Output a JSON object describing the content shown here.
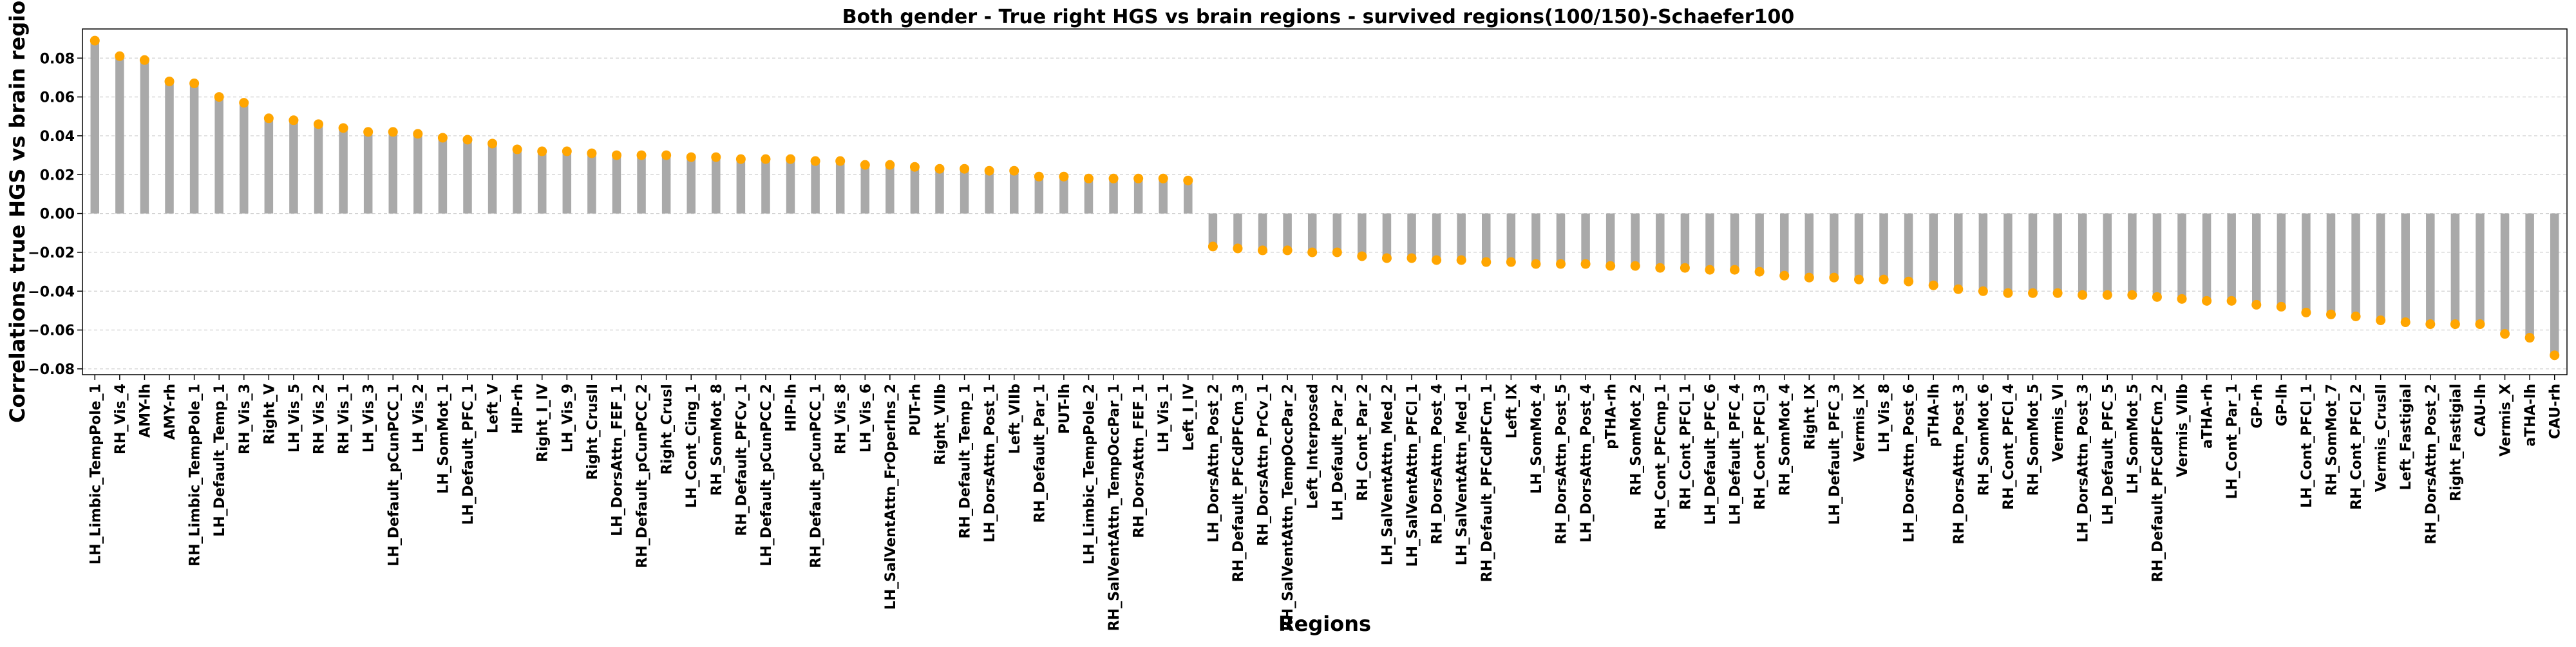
{
  "chart_data": {
    "type": "bar",
    "title": "Both gender - True right HGS vs brain regions - survived regions(100/150)-Schaefer100",
    "xlabel": "Regions",
    "ylabel": "Correlations true HGS vs brain regions",
    "ylim": [
      -0.083,
      0.095
    ],
    "yticks": [
      -0.08,
      -0.06,
      -0.04,
      -0.02,
      0.0,
      0.02,
      0.04,
      0.06,
      0.08
    ],
    "ytick_labels": [
      "−0.08",
      "−0.06",
      "−0.04",
      "−0.02",
      "0.00",
      "0.02",
      "0.04",
      "0.06",
      "0.08"
    ],
    "grid": "horizontal",
    "colors": {
      "bar": "#a9a9a9",
      "marker": "#ffa500"
    },
    "categories": [
      "LH_Limbic_TempPole_1",
      "RH_Vis_4",
      "AMY-lh",
      "AMY-rh",
      "RH_Limbic_TempPole_1",
      "LH_Default_Temp_1",
      "RH_Vis_3",
      "Right_V",
      "LH_Vis_5",
      "RH_Vis_2",
      "RH_Vis_1",
      "LH_Vis_3",
      "LH_Default_pCunPCC_1",
      "LH_Vis_2",
      "LH_SomMot_1",
      "LH_Default_PFC_1",
      "Left_V",
      "HIP-rh",
      "Right_I_IV",
      "LH_Vis_9",
      "Right_CrusII",
      "LH_DorsAttn_FEF_1",
      "RH_Default_pCunPCC_2",
      "Right_CrusI",
      "LH_Cont_Cing_1",
      "RH_SomMot_8",
      "RH_Default_PFCv_1",
      "LH_Default_pCunPCC_2",
      "HIP-lh",
      "RH_Default_pCunPCC_1",
      "RH_Vis_8",
      "LH_Vis_6",
      "LH_SalVentAttn_FrOperIns_2",
      "PUT-rh",
      "Right_VIIb",
      "RH_Default_Temp_1",
      "LH_DorsAttn_Post_1",
      "Left_VIIb",
      "RH_Default_Par_1",
      "PUT-lh",
      "LH_Limbic_TempPole_2",
      "RH_SalVentAttn_TempOccPar_1",
      "RH_DorsAttn_FEF_1",
      "LH_Vis_1",
      "Left_I_IV",
      "LH_DorsAttn_Post_2",
      "RH_Default_PFCdPFCm_3",
      "RH_DorsAttn_PrCv_1",
      "RH_SalVentAttn_TempOccPar_2",
      "Left_Interposed",
      "LH_Default_Par_2",
      "RH_Cont_Par_2",
      "LH_SalVentAttn_Med_2",
      "LH_SalVentAttn_PFCl_1",
      "RH_DorsAttn_Post_4",
      "LH_SalVentAttn_Med_1",
      "RH_Default_PFCdPFCm_1",
      "Left_IX",
      "LH_SomMot_4",
      "RH_DorsAttn_Post_5",
      "LH_DorsAttn_Post_4",
      "pTHA-rh",
      "RH_SomMot_2",
      "RH_Cont_PFCmp_1",
      "RH_Cont_PFCl_1",
      "LH_Default_PFC_6",
      "LH_Default_PFC_4",
      "RH_Cont_PFCl_3",
      "RH_SomMot_4",
      "Right_IX",
      "LH_Default_PFC_3",
      "Vermis_IX",
      "LH_Vis_8",
      "LH_DorsAttn_Post_6",
      "pTHA-lh",
      "RH_DorsAttn_Post_3",
      "RH_SomMot_6",
      "RH_Cont_PFCl_4",
      "RH_SomMot_5",
      "Vermis_VI",
      "LH_DorsAttn_Post_3",
      "LH_Default_PFC_5",
      "LH_SomMot_5",
      "RH_Default_PFCdPFCm_2",
      "Vermis_VIIb",
      "aTHA-rh",
      "LH_Cont_Par_1",
      "GP-rh",
      "GP-lh",
      "LH_Cont_PFCl_1",
      "RH_SomMot_7",
      "RH_Cont_PFCl_2",
      "Vermis_CrusII",
      "Left_Fastigial",
      "RH_DorsAttn_Post_2",
      "Right_Fastigial",
      "CAU-lh",
      "Vermis_X",
      "aTHA-lh",
      "CAU-rh"
    ],
    "values": [
      0.089,
      0.081,
      0.079,
      0.068,
      0.067,
      0.06,
      0.057,
      0.049,
      0.048,
      0.046,
      0.044,
      0.042,
      0.042,
      0.041,
      0.039,
      0.038,
      0.036,
      0.033,
      0.032,
      0.032,
      0.031,
      0.03,
      0.03,
      0.03,
      0.029,
      0.029,
      0.028,
      0.028,
      0.028,
      0.027,
      0.027,
      0.025,
      0.025,
      0.024,
      0.023,
      0.023,
      0.022,
      0.022,
      0.019,
      0.019,
      0.018,
      0.018,
      0.018,
      0.018,
      0.017,
      -0.017,
      -0.018,
      -0.019,
      -0.019,
      -0.02,
      -0.02,
      -0.022,
      -0.023,
      -0.023,
      -0.024,
      -0.024,
      -0.025,
      -0.025,
      -0.026,
      -0.026,
      -0.026,
      -0.027,
      -0.027,
      -0.028,
      -0.028,
      -0.029,
      -0.029,
      -0.03,
      -0.032,
      -0.033,
      -0.033,
      -0.034,
      -0.034,
      -0.035,
      -0.037,
      -0.039,
      -0.04,
      -0.041,
      -0.041,
      -0.041,
      -0.042,
      -0.042,
      -0.042,
      -0.043,
      -0.044,
      -0.045,
      -0.045,
      -0.047,
      -0.048,
      -0.051,
      -0.052,
      -0.053,
      -0.055,
      -0.056,
      -0.057,
      -0.057,
      -0.057,
      -0.062,
      -0.064,
      -0.073
    ]
  }
}
